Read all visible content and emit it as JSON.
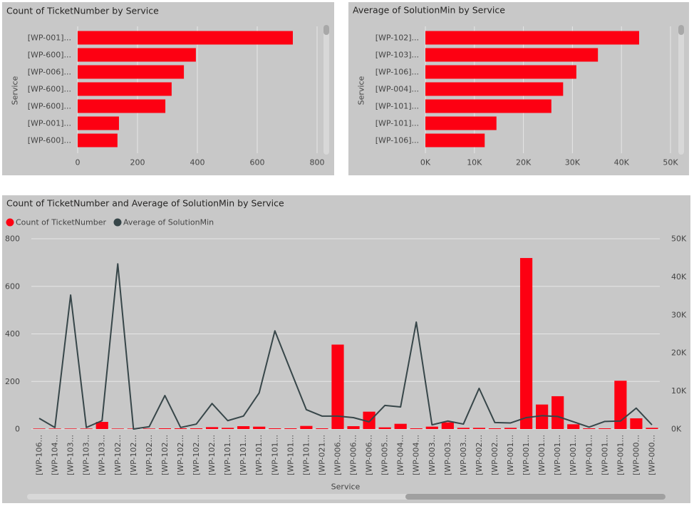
{
  "chart_data": [
    {
      "type": "bar",
      "orientation": "horizontal",
      "title": "Count of TicketNumber by Service",
      "ylabel": "Service",
      "color": "#fd0012",
      "categories": [
        "[WP-001]...",
        "[WP-600]...",
        "[WP-006]...",
        "[WP-600]...",
        "[WP-600]...",
        "[WP-001]...",
        "[WP-600]..."
      ],
      "values": [
        719,
        395,
        355,
        314,
        293,
        138,
        133
      ],
      "xlim": [
        0,
        800
      ],
      "xticks": [
        0,
        200,
        400,
        600,
        800
      ],
      "grid": true
    },
    {
      "type": "bar",
      "orientation": "horizontal",
      "title": "Average of SolutionMin by Service",
      "ylabel": "Service",
      "color": "#fd0012",
      "categories": [
        "[WP-102]...",
        "[WP-103]...",
        "[WP-106]...",
        "[WP-004]...",
        "[WP-101]...",
        "[WP-101]...",
        "[WP-106]..."
      ],
      "values": [
        43600,
        35200,
        30800,
        28100,
        25700,
        14500,
        12100
      ],
      "xlim": [
        0,
        50000
      ],
      "xticks": [
        {
          "value": 0,
          "label": "0K"
        },
        {
          "value": 10000,
          "label": "10K"
        },
        {
          "value": 20000,
          "label": "20K"
        },
        {
          "value": 30000,
          "label": "30K"
        },
        {
          "value": 40000,
          "label": "40K"
        },
        {
          "value": 50000,
          "label": "50K"
        }
      ],
      "grid": true
    },
    {
      "type": "combo",
      "title": "Count of TicketNumber and Average of SolutionMin by Service",
      "xlabel": "Service",
      "categories": [
        "[WP-106...",
        "[WP-104...",
        "[WP-103...",
        "[WP-103...",
        "[WP-103...",
        "[WP-102...",
        "[WP-102...",
        "[WP-102...",
        "[WP-102...",
        "[WP-102...",
        "[WP-102...",
        "[WP-102...",
        "[WP-101...",
        "[WP-101...",
        "[WP-101...",
        "[WP-101...",
        "[WP-101...",
        "[WP-101...",
        "[WP-021...",
        "[WP-006...",
        "[WP-006...",
        "[WP-006...",
        "[WP-005...",
        "[WP-004...",
        "[WP-004...",
        "[WP-003...",
        "[WP-003...",
        "[WP-003...",
        "[WP-002...",
        "[WP-002...",
        "[WP-001...",
        "[WP-001...",
        "[WP-001...",
        "[WP-001...",
        "[WP-001...",
        "[WP-001...",
        "[WP-001...",
        "[WP-001...",
        "[WP-000...",
        "[WP-000..."
      ],
      "series": [
        {
          "name": "Count of TicketNumber",
          "type": "bar",
          "color": "#fd0012",
          "values": [
            2,
            2,
            2,
            2,
            30,
            2,
            2,
            2,
            3,
            3,
            3,
            8,
            5,
            12,
            10,
            3,
            3,
            13,
            3,
            355,
            12,
            73,
            7,
            22,
            3,
            10,
            28,
            5,
            5,
            3,
            5,
            719,
            103,
            138,
            20,
            3,
            3,
            203,
            45,
            5
          ]
        },
        {
          "name": "Average of SolutionMin",
          "type": "line",
          "axis": "y2",
          "color": "#374649",
          "values": [
            2800,
            400,
            35200,
            400,
            2200,
            43400,
            0,
            600,
            8800,
            400,
            1300,
            6700,
            2200,
            3400,
            9500,
            25800,
            15400,
            5100,
            3400,
            3400,
            3000,
            1900,
            6200,
            5800,
            28100,
            1100,
            2100,
            1300,
            10700,
            1700,
            1600,
            3000,
            3500,
            3300,
            1900,
            500,
            2000,
            2100,
            5500,
            1100
          ]
        }
      ],
      "ylim": [
        0,
        800
      ],
      "yticks": [
        0,
        200,
        400,
        600,
        800
      ],
      "y2lim": [
        0,
        50000
      ],
      "y2ticks": [
        {
          "value": 0,
          "label": "0K"
        },
        {
          "value": 10000,
          "label": "10K"
        },
        {
          "value": 20000,
          "label": "20K"
        },
        {
          "value": 30000,
          "label": "30K"
        },
        {
          "value": 40000,
          "label": "40K"
        },
        {
          "value": 50000,
          "label": "50K"
        }
      ],
      "grid": true
    }
  ]
}
